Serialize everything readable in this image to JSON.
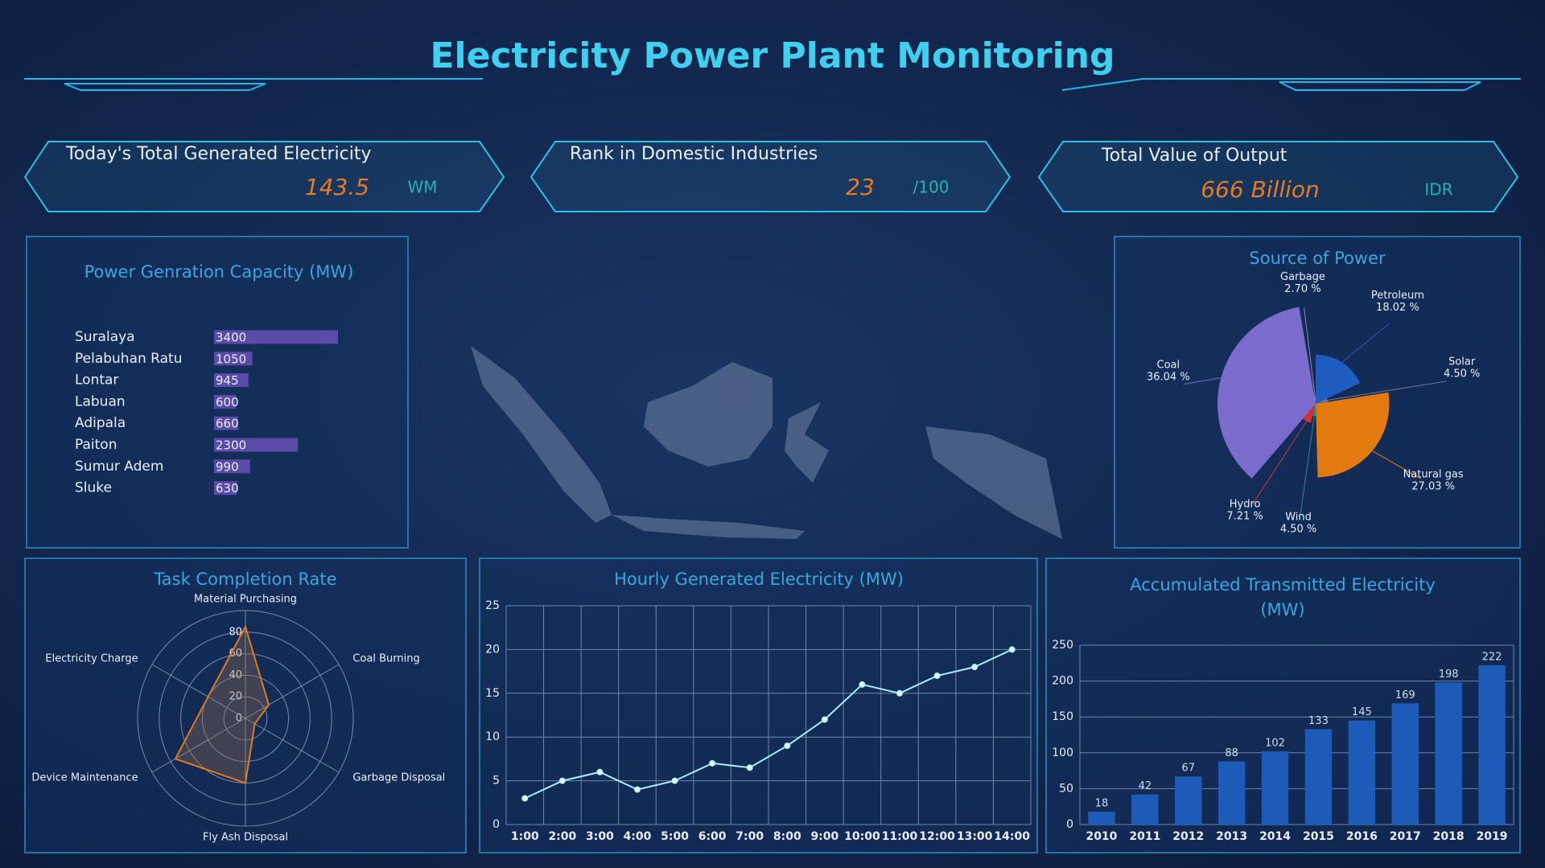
{
  "header": {
    "title": "Electricity Power Plant Monitoring"
  },
  "kpis": [
    {
      "label": "Today's Total Generated Electricity",
      "value": 143.5,
      "unit": "WM"
    },
    {
      "label": "Rank in Domestic Industries",
      "value": 23,
      "unit": "/100"
    },
    {
      "label": "Total Value of Output",
      "value": "666 Billion",
      "unit": "IDR"
    }
  ],
  "chart_data": [
    {
      "type": "barh",
      "title": "Power Genration Capacity (MW)",
      "categories": [
        "Suralaya",
        "Pelabuhan Ratu",
        "Lontar",
        "Labuan",
        "Adipala",
        "Paiton",
        "Sumur Adem",
        "Sluke"
      ],
      "values": [
        3400,
        1050,
        945,
        600,
        660,
        2300,
        990,
        630
      ],
      "color": "#5b4aa8"
    },
    {
      "type": "rose",
      "title": "Source of Power",
      "categories": [
        "Petroleum",
        "Solar",
        "Natural gas",
        "Wind",
        "Hydro",
        "Coal",
        "Garbage"
      ],
      "values": [
        18.02,
        4.5,
        27.03,
        4.5,
        7.21,
        36.04,
        2.7
      ],
      "value_labels": [
        "18.02 %",
        "4.50 %",
        "27.03 %",
        "4.50 %",
        "7.21 %",
        "36.04 %",
        "2.70 %"
      ],
      "colors": [
        "#1f5cbf",
        "#6a7892",
        "#e27a10",
        "#2a8a8a",
        "#d23232",
        "#7a6bcc",
        "#8a8a9a"
      ]
    },
    {
      "type": "radar",
      "title": "Task Completion Rate",
      "categories": [
        "Material Purchasing",
        "Coal Burning",
        "Garbage Disposal",
        "Fly Ash Disposal",
        "Device Maintenance",
        "Electricity Charge"
      ],
      "values": [
        85,
        25,
        10,
        60,
        75,
        40
      ],
      "color": "#e07a1a",
      "ylim": [
        0,
        100
      ],
      "yticks": [
        0,
        20,
        40,
        60,
        80
      ]
    },
    {
      "type": "line",
      "title": "Hourly Generated Electricity (MW)",
      "categories": [
        "1:00",
        "2:00",
        "3:00",
        "4:00",
        "5:00",
        "6:00",
        "7:00",
        "8:00",
        "9:00",
        "10:00",
        "11:00",
        "12:00",
        "13:00",
        "14:00"
      ],
      "values": [
        3,
        5,
        6,
        4,
        5,
        7,
        6.5,
        9,
        12,
        16,
        15,
        17,
        18,
        20
      ],
      "color": "#a8f0ff",
      "ylim": [
        0,
        25
      ],
      "yticks": [
        0,
        5,
        10,
        15,
        20,
        25
      ],
      "grid": true
    },
    {
      "type": "bar",
      "title": "Accumulated Transmitted Electricity (MW)",
      "categories": [
        "2010",
        "2011",
        "2012",
        "2013",
        "2014",
        "2015",
        "2016",
        "2017",
        "2018",
        "2019"
      ],
      "values": [
        18,
        42,
        67,
        88,
        102,
        133,
        145,
        169,
        198,
        222
      ],
      "color": "#1e5bb8",
      "ylim": [
        0,
        250
      ],
      "yticks": [
        0,
        50,
        100,
        150,
        200,
        250
      ],
      "grid": true
    }
  ]
}
